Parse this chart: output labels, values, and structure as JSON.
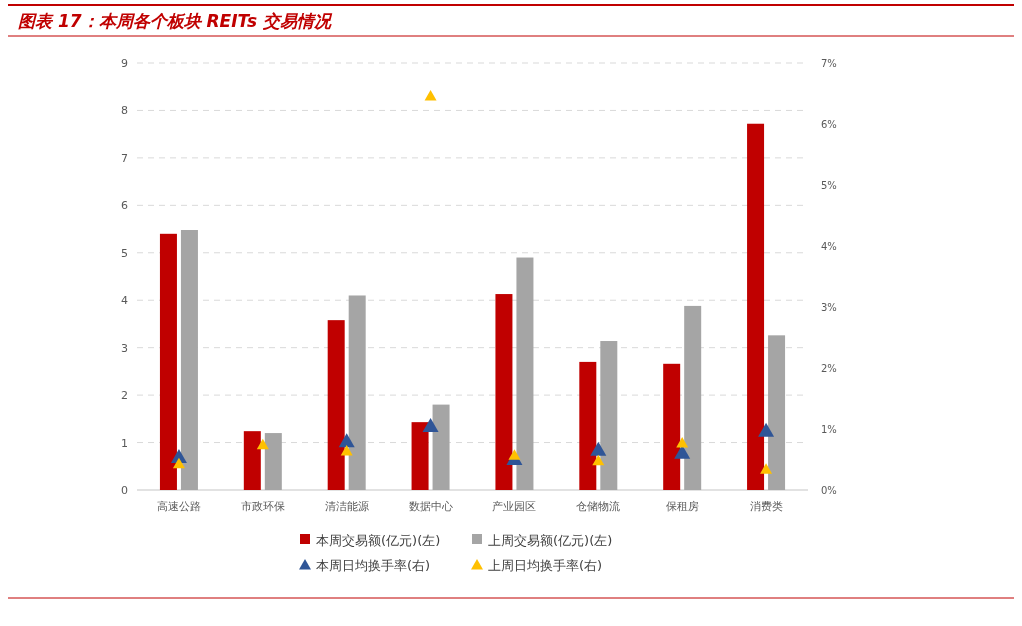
{
  "chart_data": {
    "type": "bar",
    "title": "图表 17：本周各个板块 REITs 交易情况",
    "categories": [
      "高速公路",
      "市政环保",
      "清洁能源",
      "数据中心",
      "产业园区",
      "仓储物流",
      "保租房",
      "消费类"
    ],
    "series": [
      {
        "name": "本周交易额(亿元)(左)",
        "color": "#c00000",
        "values": [
          5.4,
          1.24,
          3.58,
          1.43,
          4.13,
          2.7,
          2.66,
          7.72
        ]
      },
      {
        "name": "上周交易额(亿元)(左)",
        "color": "#a5a5a5",
        "values": [
          5.48,
          1.2,
          4.1,
          1.8,
          4.9,
          3.14,
          3.88,
          3.26
        ]
      },
      {
        "name": "本周日均换手率(右)",
        "type": "scatter",
        "axis": "y2",
        "marker": "triangle",
        "color": "#2f5597",
        "values": [
          0.54,
          null,
          0.8,
          1.05,
          0.51,
          0.66,
          0.61,
          0.97
        ]
      },
      {
        "name": "上周日均换手率(右)",
        "type": "scatter",
        "axis": "y2",
        "marker": "triangle",
        "color": "#ffc000",
        "values": [
          0.43,
          0.74,
          0.64,
          6.46,
          0.57,
          0.48,
          0.77,
          0.34
        ]
      }
    ],
    "ylim": [
      0,
      9
    ],
    "yticks": [
      0,
      1,
      2,
      3,
      4,
      5,
      6,
      7,
      8,
      9
    ],
    "y2lim": [
      0,
      7
    ],
    "y2ticks": [
      {
        "value": 0,
        "label": "0%"
      },
      {
        "value": 1,
        "label": "1%"
      },
      {
        "value": 2,
        "label": "2%"
      },
      {
        "value": 3,
        "label": "3%"
      },
      {
        "value": 4,
        "label": "4%"
      },
      {
        "value": 5,
        "label": "5%"
      },
      {
        "value": 6,
        "label": "6%"
      },
      {
        "value": 7,
        "label": "7%"
      }
    ],
    "grid": "y",
    "legend": "bottom"
  }
}
